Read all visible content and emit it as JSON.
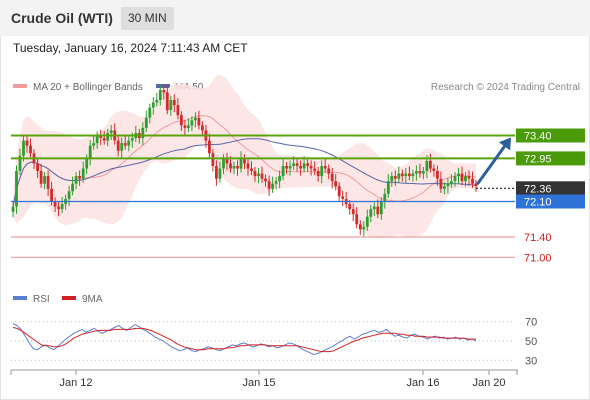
{
  "header": {
    "instrument": "Crude Oil (WTI)",
    "timeframe": "30 MIN",
    "datetime": "Tuesday, January 16, 2024 7:11:43 AM CET"
  },
  "legend": {
    "ma20_label": "MA 20 + Bollinger Bands",
    "ma50_label": "MA 50",
    "credit": "Research © 2024 Trading Central",
    "rsi_label": "RSI",
    "rsi_ma_label": "9MA"
  },
  "colors": {
    "up_candle": "#2e9e2e",
    "down_candle": "#d42a2a",
    "bollinger_fill": "#fde2e2",
    "ma20": "#f29b9b",
    "ma50": "#5666a8",
    "resistance": "#5aa30a",
    "pivot": "#2f73d8",
    "support": "#f0a0a0",
    "support_text": "#d41c1c",
    "current_price": "#333333",
    "arrow": "#2d5f9e",
    "rsi": "#5b7fd6",
    "rsi_ma": "#d42020"
  },
  "chart_data": [
    {
      "type": "candlestick",
      "title": "Crude Oil (WTI)",
      "timeframe": "30 MIN",
      "ylim": [
        70.75,
        74.1
      ],
      "x_tick_labels": [
        "Jan 12",
        "Jan 15",
        "Jan 16",
        "Jan 20"
      ],
      "levels": [
        {
          "value": 73.4,
          "label": "73.40",
          "kind": "resistance"
        },
        {
          "value": 72.95,
          "label": "72.95",
          "kind": "resistance"
        },
        {
          "value": 72.36,
          "label": "72.36",
          "kind": "current"
        },
        {
          "value": 72.1,
          "label": "72.10",
          "kind": "pivot"
        },
        {
          "value": 71.4,
          "label": "71.40",
          "kind": "support"
        },
        {
          "value": 71.0,
          "label": "71.00",
          "kind": "support"
        }
      ],
      "close": [
        72.0,
        72.7,
        73.0,
        73.3,
        73.2,
        73.05,
        72.85,
        72.7,
        72.45,
        72.6,
        72.35,
        72.1,
        72.0,
        71.95,
        72.05,
        72.15,
        72.3,
        72.45,
        72.6,
        72.55,
        72.75,
        72.95,
        73.2,
        73.25,
        73.4,
        73.35,
        73.3,
        73.45,
        73.5,
        73.3,
        73.1,
        73.25,
        73.2,
        73.3,
        73.35,
        73.45,
        73.35,
        73.55,
        73.75,
        73.95,
        74.05,
        74.1,
        74.3,
        74.25,
        73.9,
        74.1,
        74.0,
        73.8,
        73.6,
        73.55,
        73.6,
        73.7,
        73.75,
        73.6,
        73.5,
        73.3,
        73.05,
        72.8,
        72.55,
        72.75,
        72.95,
        72.85,
        72.75,
        72.8,
        72.75,
        72.95,
        72.85,
        72.75,
        72.7,
        72.6,
        72.65,
        72.55,
        72.5,
        72.35,
        72.45,
        72.5,
        72.6,
        72.8,
        72.75,
        72.8,
        72.85,
        72.8,
        72.75,
        72.85,
        72.8,
        72.75,
        72.7,
        72.6,
        72.8,
        72.75,
        72.65,
        72.5,
        72.4,
        72.2,
        72.15,
        72.05,
        71.95,
        71.85,
        71.65,
        71.55,
        71.6,
        71.8,
        71.95,
        72.0,
        71.85,
        72.1,
        72.25,
        72.5,
        72.6,
        72.55,
        72.65,
        72.6,
        72.65,
        72.6,
        72.65,
        72.7,
        72.65,
        72.7,
        72.9,
        72.75,
        72.7,
        72.55,
        72.35,
        72.4,
        72.45,
        72.5,
        72.6,
        72.65,
        72.5,
        72.6,
        72.55,
        72.45,
        72.4
      ]
    },
    {
      "type": "line",
      "title": "RSI",
      "ylim": [
        20,
        80
      ],
      "y_ticks": [
        70,
        50,
        30
      ],
      "series": [
        {
          "name": "RSI",
          "values": [
            68,
            66,
            62,
            55,
            48,
            42,
            41,
            44,
            46,
            43,
            41,
            44,
            48,
            52,
            55,
            58,
            60,
            62,
            59,
            61,
            63,
            60,
            58,
            60,
            62,
            64,
            66,
            63,
            61,
            64,
            67,
            65,
            62,
            60,
            57,
            54,
            52,
            50,
            47,
            44,
            42,
            40,
            41,
            43,
            40,
            39,
            41,
            42,
            44,
            43,
            41,
            40,
            42,
            44,
            46,
            45,
            47,
            48,
            46,
            44,
            45,
            47,
            46,
            44,
            45,
            43,
            44,
            46,
            48,
            47,
            45,
            42,
            40,
            38,
            36,
            37,
            39,
            41,
            43,
            45,
            48,
            50,
            53,
            55,
            52,
            54,
            57,
            58,
            60,
            61,
            59,
            60,
            62,
            58,
            55,
            56,
            54,
            53,
            56,
            57,
            55,
            54,
            52,
            54,
            55,
            53,
            54,
            52,
            53,
            54,
            52,
            53,
            51,
            52,
            50
          ]
        },
        {
          "name": "9MA",
          "values": [
            64,
            63,
            61,
            58,
            55,
            52,
            49,
            46,
            45,
            45,
            44,
            44,
            45,
            47,
            50,
            53,
            55,
            57,
            58,
            59,
            60,
            61,
            61,
            61,
            61,
            62,
            62,
            62,
            62,
            62,
            63,
            63,
            63,
            62,
            61,
            59,
            57,
            55,
            53,
            51,
            48,
            46,
            44,
            43,
            42,
            41,
            41,
            41,
            42,
            42,
            42,
            42,
            42,
            43,
            43,
            44,
            45,
            45,
            46,
            46,
            46,
            46,
            46,
            45,
            45,
            45,
            45,
            45,
            45,
            45,
            45,
            44,
            43,
            42,
            41,
            40,
            39,
            39,
            39,
            40,
            42,
            44,
            46,
            48,
            50,
            51,
            53,
            54,
            55,
            56,
            57,
            58,
            58,
            58,
            58,
            57,
            57,
            56,
            56,
            55,
            55,
            55,
            54,
            54,
            54,
            54,
            53,
            53,
            53,
            53,
            53,
            53,
            52,
            52,
            52
          ]
        }
      ]
    }
  ]
}
